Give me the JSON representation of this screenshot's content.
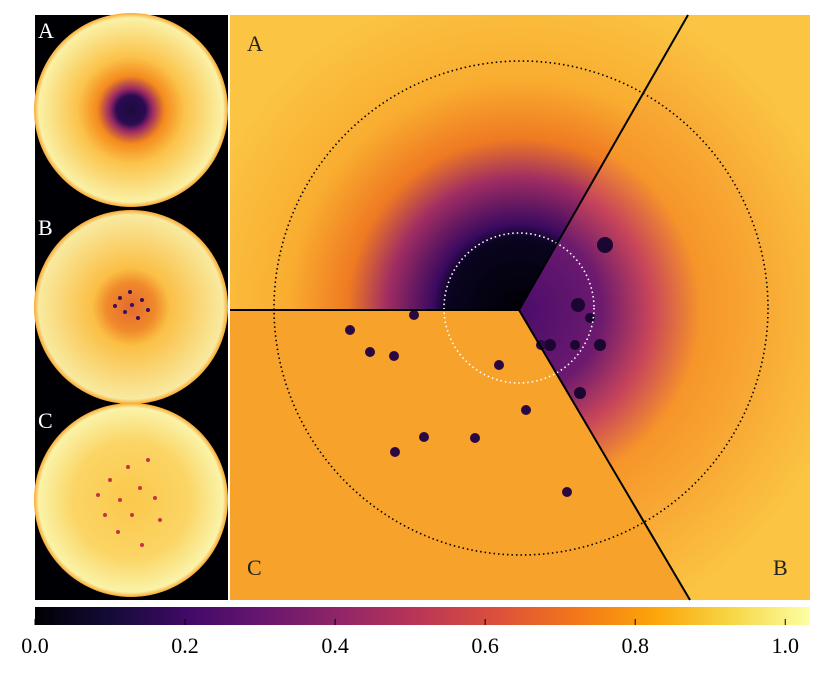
{
  "chart_data": {
    "type": "heatmap",
    "panel_labels": [
      "A",
      "B",
      "C"
    ],
    "main_labels": [
      "A",
      "B",
      "C"
    ],
    "clim": [
      0,
      1.033
    ],
    "cticks": [
      {
        "value": 0,
        "label": "0.0"
      },
      {
        "value": 0.2,
        "label": "0.2"
      },
      {
        "value": 0.4,
        "label": "0.4"
      },
      {
        "value": 0.6,
        "label": "0.6"
      },
      {
        "value": 0.8,
        "label": "0.8"
      },
      {
        "value": 1,
        "label": "1.0"
      }
    ],
    "colormap": "inferno"
  }
}
